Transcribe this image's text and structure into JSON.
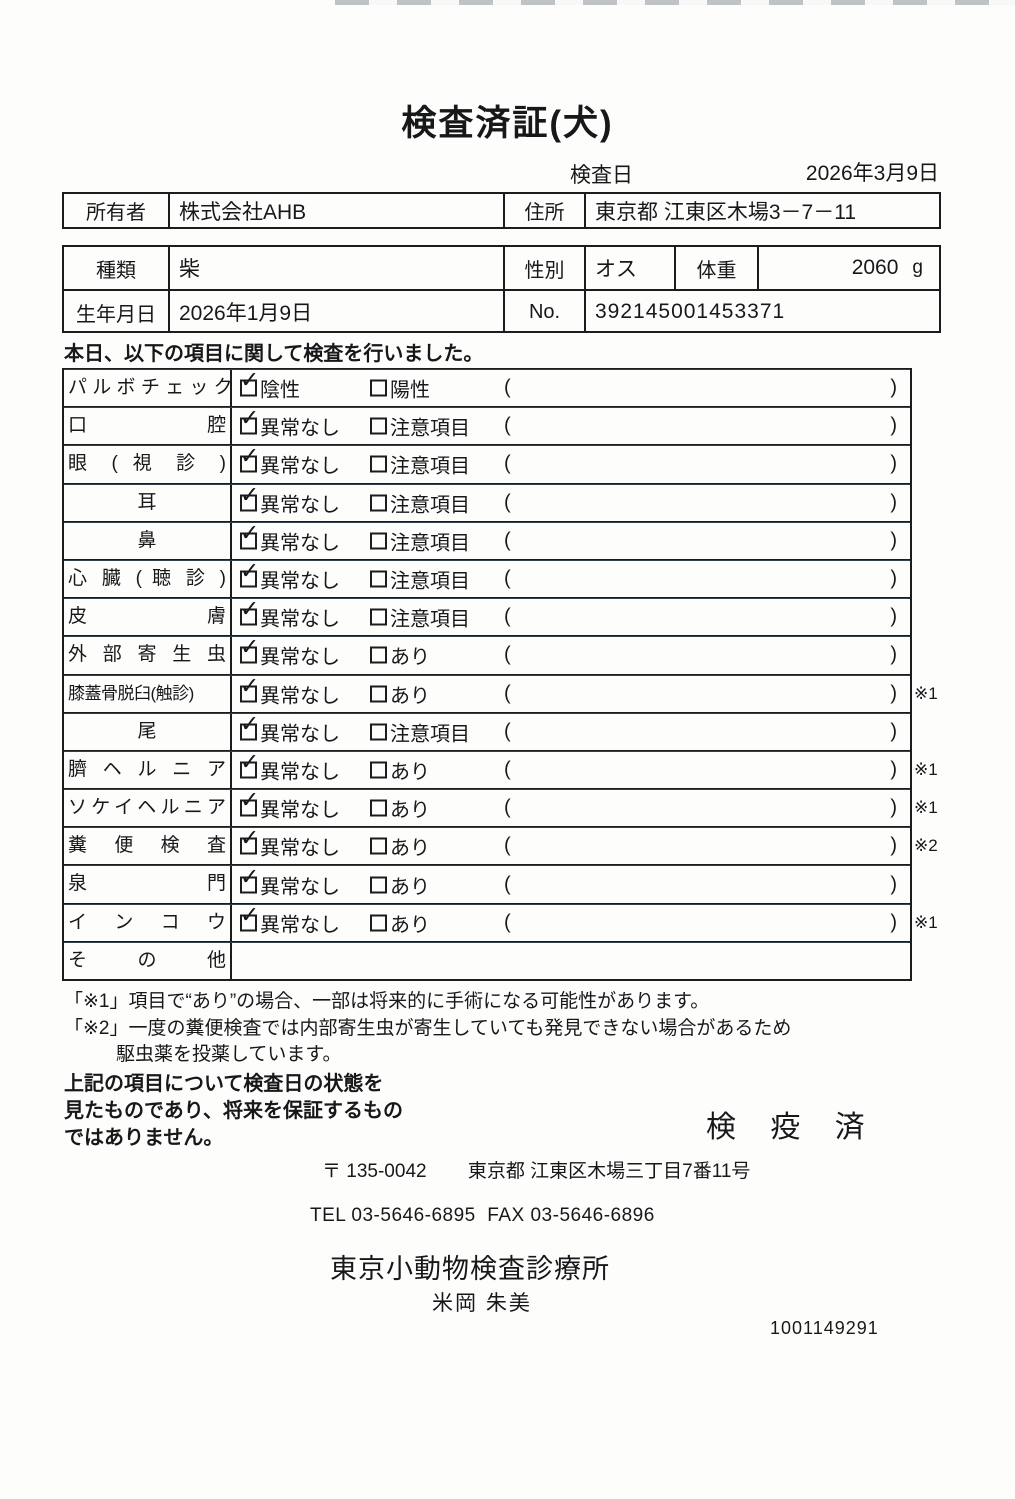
{
  "icons": {
    "check": "✓"
  },
  "title": "検査済証(犬)",
  "header": {
    "date_label": "検査日",
    "date_value": "2026年3月9日"
  },
  "owner_row": {
    "owner_label": "所有者",
    "owner_value": "株式会社AHB",
    "address_label": "住所",
    "address_value": "東京都 江東区木場3－7－11"
  },
  "info_rows": {
    "breed_label": "種類",
    "breed_value": "柴",
    "sex_label": "性別",
    "sex_value": "オス",
    "weight_label": "体重",
    "weight_value": "2060",
    "weight_unit": "g",
    "birth_label": "生年月日",
    "birth_value": "2026年1月9日",
    "no_label": "No.",
    "no_value": "392145001453371"
  },
  "intro": "本日、以下の項目に関して検査を行いました。",
  "exam": {
    "paren_open": "(",
    "paren_close": ")",
    "rows": [
      {
        "item": "パ ル ボ チ ェ ッ ク",
        "align": "justify",
        "has_options": true,
        "opt1": "陰性",
        "opt1_checked": true,
        "opt2": "陽性",
        "note": ""
      },
      {
        "item": "口 腔",
        "align": "justify",
        "has_options": true,
        "opt1": "異常なし",
        "opt1_checked": true,
        "opt2": "注意項目",
        "note": ""
      },
      {
        "item": "眼 ( 視 診 )",
        "align": "justify",
        "has_options": true,
        "opt1": "異常なし",
        "opt1_checked": true,
        "opt2": "注意項目",
        "note": ""
      },
      {
        "item": "耳",
        "align": "center",
        "has_options": true,
        "opt1": "異常なし",
        "opt1_checked": true,
        "opt2": "注意項目",
        "note": ""
      },
      {
        "item": "鼻",
        "align": "center",
        "has_options": true,
        "opt1": "異常なし",
        "opt1_checked": true,
        "opt2": "注意項目",
        "note": ""
      },
      {
        "item": "心 臓 ( 聴 診 )",
        "align": "justify",
        "has_options": true,
        "opt1": "異常なし",
        "opt1_checked": true,
        "opt2": "注意項目",
        "note": ""
      },
      {
        "item": "皮 膚",
        "align": "justify",
        "has_options": true,
        "opt1": "異常なし",
        "opt1_checked": true,
        "opt2": "注意項目",
        "note": ""
      },
      {
        "item": "外 部 寄 生 虫",
        "align": "justify",
        "has_options": true,
        "opt1": "異常なし",
        "opt1_checked": true,
        "opt2": "あり",
        "note": ""
      },
      {
        "item": "膝蓋骨脱臼(触診)",
        "align": "tight",
        "has_options": true,
        "opt1": "異常なし",
        "opt1_checked": true,
        "opt2": "あり",
        "note": "※1"
      },
      {
        "item": "尾",
        "align": "center",
        "has_options": true,
        "opt1": "異常なし",
        "opt1_checked": true,
        "opt2": "注意項目",
        "note": ""
      },
      {
        "item": "臍 ヘ ル ニ ア",
        "align": "justify",
        "has_options": true,
        "opt1": "異常なし",
        "opt1_checked": true,
        "opt2": "あり",
        "note": "※1"
      },
      {
        "item": "ソケイヘルニア",
        "align": "justify",
        "has_options": true,
        "opt1": "異常なし",
        "opt1_checked": true,
        "opt2": "あり",
        "note": "※1"
      },
      {
        "item": "糞 便 検 査",
        "align": "justify",
        "has_options": true,
        "opt1": "異常なし",
        "opt1_checked": true,
        "opt2": "あり",
        "note": "※2"
      },
      {
        "item": "泉 門",
        "align": "justify",
        "has_options": true,
        "opt1": "異常なし",
        "opt1_checked": true,
        "opt2": "あり",
        "note": ""
      },
      {
        "item": "イ ン コ ウ",
        "align": "justify",
        "has_options": true,
        "opt1": "異常なし",
        "opt1_checked": true,
        "opt2": "あり",
        "note": "※1"
      },
      {
        "item": "そ の 他",
        "align": "justify",
        "has_options": false,
        "opt1": "",
        "opt1_checked": false,
        "opt2": "",
        "note": ""
      }
    ]
  },
  "footnotes": {
    "line1": "「※1」項目で“あり”の場合、一部は将来的に手術になる可能性があります。",
    "line2": "「※2」一度の糞便検査では内部寄生虫が寄生していても発見できない場合があるため",
    "line3": "駆虫薬を投薬しています。"
  },
  "disclaimer": {
    "line1": "上記の項目について検査日の状態を",
    "line2": "見たものであり、将来を保証するもの",
    "line3": "ではありません。"
  },
  "stamp": "検 疫 済",
  "clinic": {
    "postal": "〒 135-0042",
    "address": "東京都 江東区木場三丁目7番11号",
    "tel_fax": "TEL 03-5646-6895  FAX 03-5646-6896",
    "name": "東京小動物検査診療所",
    "examiner": "米岡 朱美",
    "doc_number": "1001149291"
  }
}
